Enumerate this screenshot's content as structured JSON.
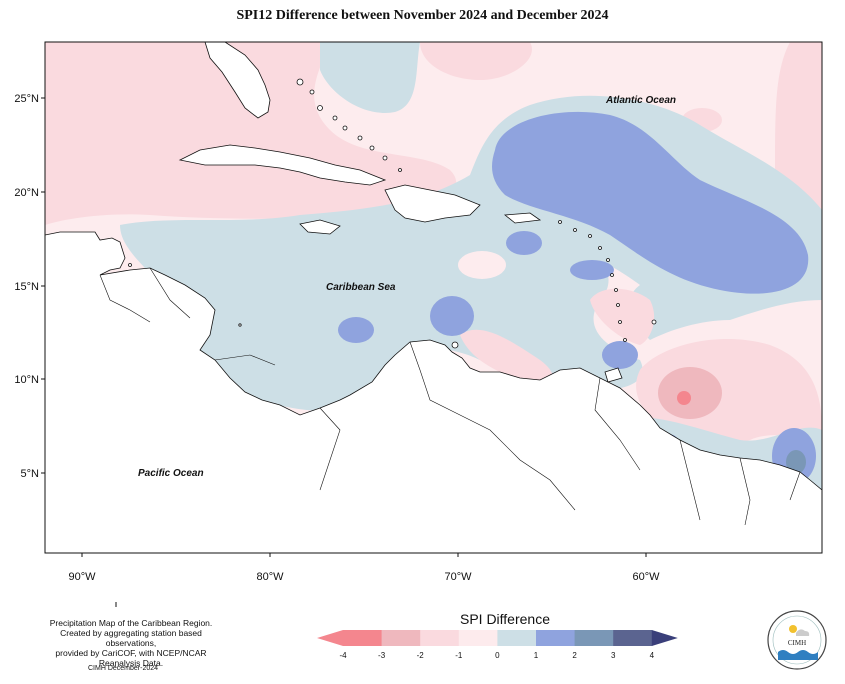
{
  "title": "SPI12 Difference between November 2024 and December 2024",
  "axes": {
    "lat_ticks": [
      "25°N",
      "20°N",
      "15°N",
      "10°N",
      "5°N"
    ],
    "lon_ticks": [
      "90°W",
      "80°W",
      "70°W",
      "60°W"
    ]
  },
  "labels": {
    "atlantic": "Atlantic Ocean",
    "caribbean": "Caribbean Sea",
    "pacific": "Pacific Ocean"
  },
  "legend": {
    "title": "SPI Difference",
    "ticks": [
      "-4",
      "-3",
      "-2",
      "-1",
      "0",
      "1",
      "2",
      "3",
      "4"
    ],
    "colors": [
      "#f4868e",
      "#efb8be",
      "#fadadf",
      "#fdebed",
      "#cddfe6",
      "#8fa3de",
      "#7a97b6",
      "#5b6490"
    ]
  },
  "footer": {
    "desc_line1": "Precipitation Map of the Caribbean Region.",
    "desc_line2": "Created by aggregating station based observations,",
    "desc_line3": "provided by CariCOF, with NCEP/NCAR Reanalysis Data.",
    "credit": "CIMH December-2024"
  },
  "logo": {
    "text": "CIMH"
  }
}
